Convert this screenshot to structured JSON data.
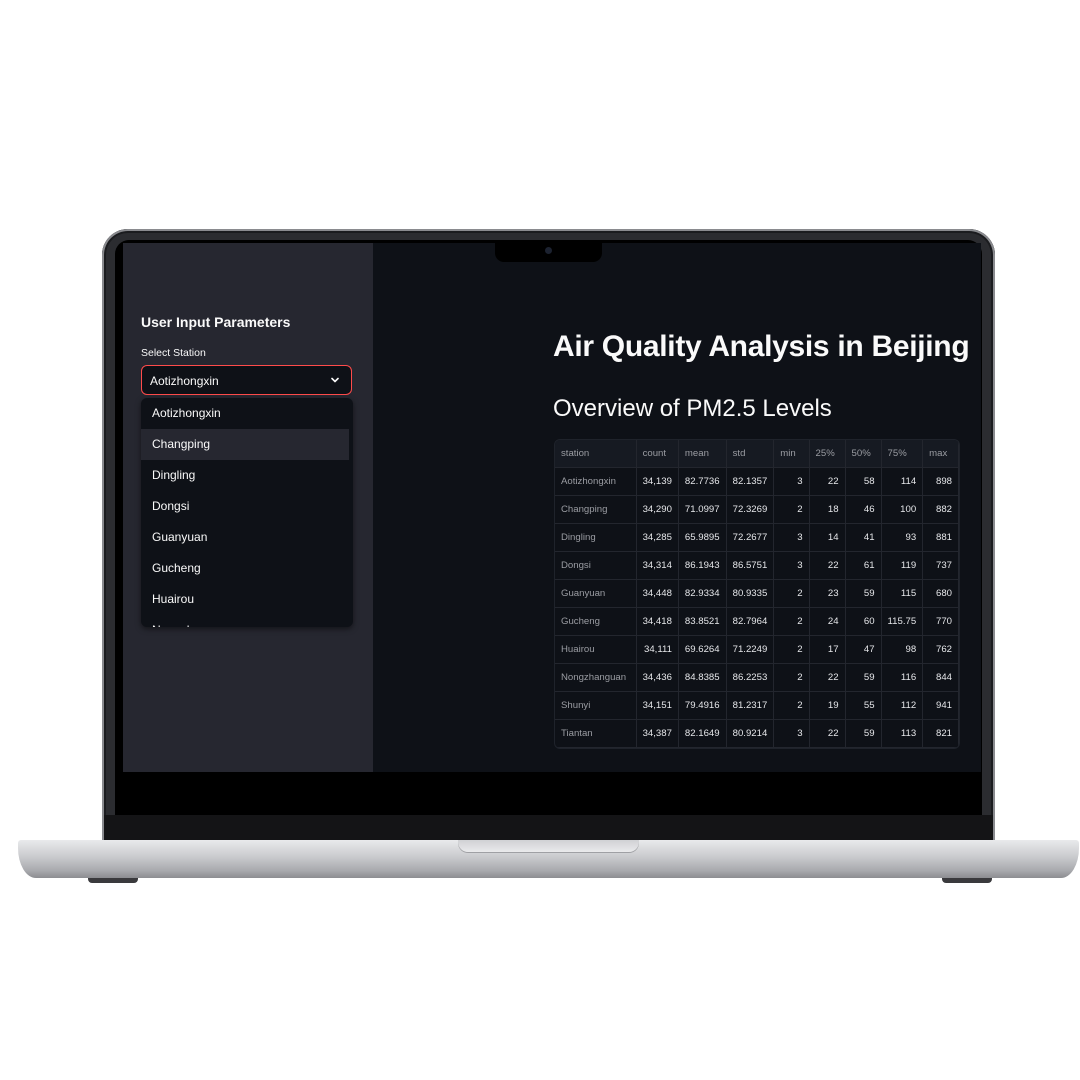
{
  "sidebar": {
    "title": "User Input Parameters",
    "select_label": "Select Station",
    "selected_value": "Aotizhongxin",
    "options": [
      "Aotizhongxin",
      "Changping",
      "Dingling",
      "Dongsi",
      "Guanyuan",
      "Gucheng",
      "Huairou",
      "Nongzhanguan"
    ],
    "hovered_option": "Changping"
  },
  "main": {
    "title": "Air Quality Analysis in Beijing",
    "subtitle": "Overview of PM2.5 Levels"
  },
  "table": {
    "columns": [
      "station",
      "count",
      "mean",
      "std",
      "min",
      "25%",
      "50%",
      "75%",
      "max"
    ],
    "rows": [
      [
        "Aotizhongxin",
        "34,139",
        "82.7736",
        "82.1357",
        "3",
        "22",
        "58",
        "114",
        "898"
      ],
      [
        "Changping",
        "34,290",
        "71.0997",
        "72.3269",
        "2",
        "18",
        "46",
        "100",
        "882"
      ],
      [
        "Dingling",
        "34,285",
        "65.9895",
        "72.2677",
        "3",
        "14",
        "41",
        "93",
        "881"
      ],
      [
        "Dongsi",
        "34,314",
        "86.1943",
        "86.5751",
        "3",
        "22",
        "61",
        "119",
        "737"
      ],
      [
        "Guanyuan",
        "34,448",
        "82.9334",
        "80.9335",
        "2",
        "23",
        "59",
        "115",
        "680"
      ],
      [
        "Gucheng",
        "34,418",
        "83.8521",
        "82.7964",
        "2",
        "24",
        "60",
        "115.75",
        "770"
      ],
      [
        "Huairou",
        "34,111",
        "69.6264",
        "71.2249",
        "2",
        "17",
        "47",
        "98",
        "762"
      ],
      [
        "Nongzhanguan",
        "34,436",
        "84.8385",
        "86.2253",
        "2",
        "22",
        "59",
        "116",
        "844"
      ],
      [
        "Shunyi",
        "34,151",
        "79.4916",
        "81.2317",
        "2",
        "19",
        "55",
        "112",
        "941"
      ],
      [
        "Tiantan",
        "34,387",
        "82.1649",
        "80.9214",
        "3",
        "22",
        "59",
        "113",
        "821"
      ]
    ]
  },
  "colors": {
    "accent": "#ff4b4b",
    "background": "#0e1117",
    "sidebar": "#262730",
    "text": "#fafafa"
  },
  "icons": {
    "select_chevron": "chevron-down-icon",
    "camera": "camera-icon"
  }
}
